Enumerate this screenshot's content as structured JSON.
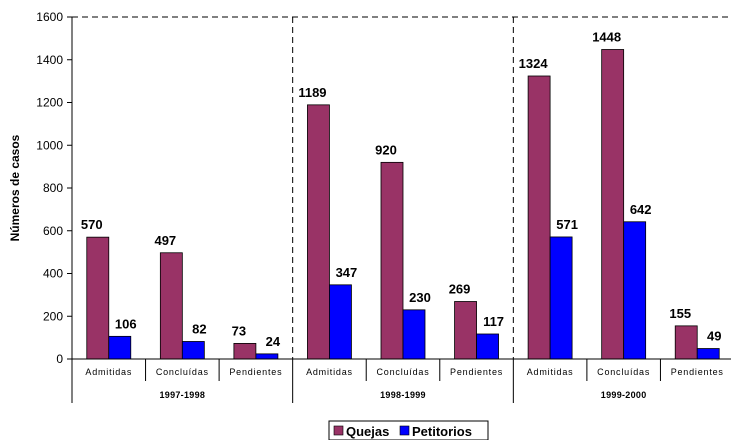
{
  "chart_data": {
    "type": "bar",
    "ylabel": "Números de casos",
    "ylim": [
      0,
      1600
    ],
    "yticks": [
      0,
      200,
      400,
      600,
      800,
      1000,
      1200,
      1400,
      1600
    ],
    "groups": [
      {
        "label": "1997-1998",
        "categories": [
          "Admitidas",
          "Concluídas",
          "Pendientes"
        ]
      },
      {
        "label": "1998-1999",
        "categories": [
          "Admitidas",
          "Concluídas",
          "Pendientes"
        ]
      },
      {
        "label": "1999-2000",
        "categories": [
          "Admitidas",
          "Concluídas",
          "Pendientes"
        ]
      }
    ],
    "series": [
      {
        "name": "Quejas",
        "color": "#993366",
        "values": [
          570,
          497,
          73,
          1189,
          920,
          269,
          1324,
          1448,
          155
        ]
      },
      {
        "name": "Petitorios",
        "color": "#0000FF",
        "values": [
          106,
          82,
          24,
          347,
          230,
          117,
          571,
          642,
          49
        ]
      }
    ],
    "grid": "dashed top line and dashed group separators",
    "legend_position": "bottom"
  }
}
